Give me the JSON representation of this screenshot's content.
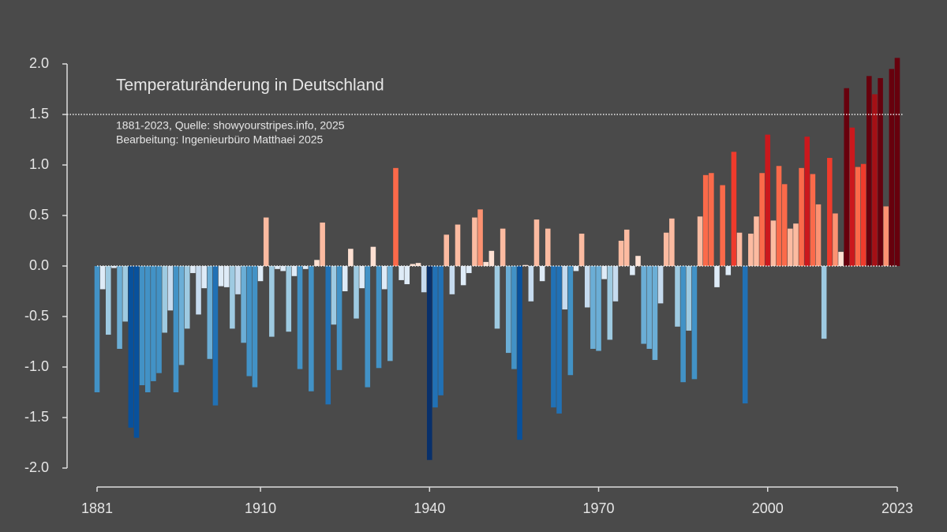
{
  "chart_data": {
    "type": "bar",
    "title": "Temperaturänderung in Deutschland",
    "subtitle": [
      "1881-2023, Quelle: showyourstripes.info, 2025",
      "Bearbeitung: Ingenieurbüro Matthaei 2025"
    ],
    "x": [
      1881,
      1882,
      1883,
      1884,
      1885,
      1886,
      1887,
      1888,
      1889,
      1890,
      1891,
      1892,
      1893,
      1894,
      1895,
      1896,
      1897,
      1898,
      1899,
      1900,
      1901,
      1902,
      1903,
      1904,
      1905,
      1906,
      1907,
      1908,
      1909,
      1910,
      1911,
      1912,
      1913,
      1914,
      1915,
      1916,
      1917,
      1918,
      1919,
      1920,
      1921,
      1922,
      1923,
      1924,
      1925,
      1926,
      1927,
      1928,
      1929,
      1930,
      1931,
      1932,
      1933,
      1934,
      1935,
      1936,
      1937,
      1938,
      1939,
      1940,
      1941,
      1942,
      1943,
      1944,
      1945,
      1946,
      1947,
      1948,
      1949,
      1950,
      1951,
      1952,
      1953,
      1954,
      1955,
      1956,
      1957,
      1958,
      1959,
      1960,
      1961,
      1962,
      1963,
      1964,
      1965,
      1966,
      1967,
      1968,
      1969,
      1970,
      1971,
      1972,
      1973,
      1974,
      1975,
      1976,
      1977,
      1978,
      1979,
      1980,
      1981,
      1982,
      1983,
      1984,
      1985,
      1986,
      1987,
      1988,
      1989,
      1990,
      1991,
      1992,
      1993,
      1994,
      1995,
      1996,
      1997,
      1998,
      1999,
      2000,
      2001,
      2002,
      2003,
      2004,
      2005,
      2006,
      2007,
      2008,
      2009,
      2010,
      2011,
      2012,
      2013,
      2014,
      2015,
      2016,
      2017,
      2018,
      2019,
      2020,
      2021,
      2022,
      2023
    ],
    "values": [
      -1.25,
      -0.23,
      -0.68,
      -0.02,
      -0.82,
      -0.55,
      -1.6,
      -1.7,
      -1.18,
      -1.25,
      -1.14,
      -1.06,
      -0.66,
      -0.44,
      -1.25,
      -0.98,
      -0.62,
      -0.07,
      -0.48,
      -0.22,
      -0.92,
      -1.38,
      -0.2,
      -0.21,
      -0.62,
      -0.28,
      -0.76,
      -1.09,
      -1.2,
      -0.15,
      0.48,
      -0.7,
      -0.03,
      -0.05,
      -0.65,
      -0.1,
      -1.02,
      -0.03,
      -1.24,
      0.06,
      0.43,
      -1.37,
      -0.58,
      -1.03,
      -0.25,
      0.17,
      -0.52,
      -0.22,
      -1.2,
      0.19,
      -1.01,
      -0.23,
      -0.94,
      0.97,
      -0.14,
      -0.18,
      0.02,
      0.03,
      -0.26,
      -1.92,
      -1.4,
      -1.28,
      0.31,
      -0.28,
      0.41,
      -0.19,
      -0.07,
      0.48,
      0.56,
      0.04,
      0.15,
      -0.62,
      0.37,
      -0.86,
      -1.02,
      -1.72,
      0.01,
      -0.35,
      0.46,
      -0.15,
      0.37,
      -1.4,
      -1.46,
      -0.43,
      -1.08,
      -0.05,
      0.32,
      -0.41,
      -0.82,
      -0.84,
      -0.13,
      -0.73,
      -0.35,
      0.25,
      0.36,
      -0.09,
      0.1,
      -0.77,
      -0.82,
      -0.93,
      -0.37,
      0.33,
      0.47,
      -0.6,
      -1.15,
      -0.64,
      -1.12,
      0.49,
      0.9,
      0.92,
      -0.21,
      0.8,
      -0.09,
      1.13,
      0.33,
      -1.36,
      0.32,
      0.49,
      0.92,
      1.3,
      0.45,
      0.99,
      0.81,
      0.37,
      0.42,
      0.97,
      1.28,
      0.91,
      0.61,
      -0.72,
      1.07,
      0.52,
      0.14,
      1.76,
      1.37,
      0.98,
      1.01,
      1.88,
      1.7,
      1.86,
      0.59,
      1.95,
      2.06
    ],
    "colorscale": [
      "#08306b",
      "#08519c",
      "#2171b5",
      "#4292c6",
      "#6baed6",
      "#9ecae1",
      "#c6dbef",
      "#deebf7",
      "#fee0d2",
      "#fcbba1",
      "#fc9272",
      "#fb6a4a",
      "#ef3b2c",
      "#cb181d",
      "#a50f15",
      "#67000d"
    ],
    "xlim": [
      1881,
      2023
    ],
    "xticks": [
      1881,
      1910,
      1940,
      1970,
      2000,
      2023
    ],
    "ylim": [
      -2,
      2
    ],
    "yticks": [
      {
        "value": 2,
        "label": "2.0"
      },
      {
        "value": 1.5,
        "label": "1.5"
      },
      {
        "value": 1,
        "label": "1.0"
      },
      {
        "value": 0.5,
        "label": "0.5"
      },
      {
        "value": 0,
        "label": "0.0"
      },
      {
        "value": -0.5,
        "label": "-0.5"
      },
      {
        "value": -1,
        "label": "-1.0"
      },
      {
        "value": -1.5,
        "label": "-1.5"
      },
      {
        "value": -2,
        "label": "-2.0"
      }
    ],
    "hline": 1.5
  }
}
